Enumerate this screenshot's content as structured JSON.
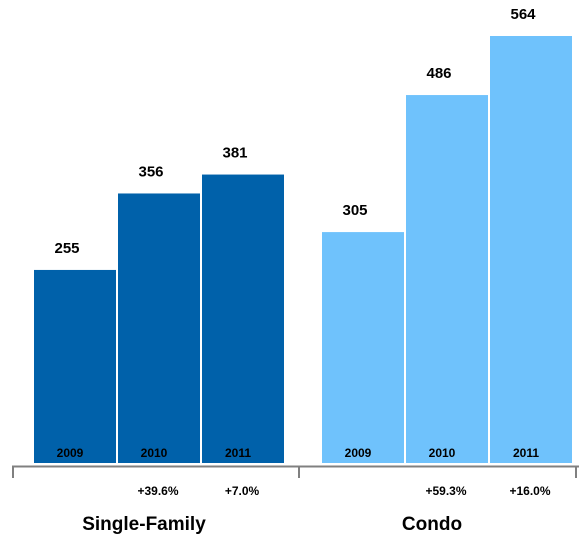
{
  "chart_data": {
    "type": "bar",
    "groups": [
      {
        "name": "Single-Family",
        "color": "#0061aa",
        "categories": [
          "2009",
          "2010",
          "2011"
        ],
        "values": [
          255,
          356,
          381
        ],
        "changes": [
          "",
          "+39.6%",
          "+7.0%"
        ]
      },
      {
        "name": "Condo",
        "color": "#6fc2fc",
        "categories": [
          "2009",
          "2010",
          "2011"
        ],
        "values": [
          305,
          486,
          564
        ],
        "changes": [
          "",
          "+59.3%",
          "+16.0%"
        ]
      }
    ],
    "ylim": [
      0,
      564
    ],
    "grid": false
  }
}
